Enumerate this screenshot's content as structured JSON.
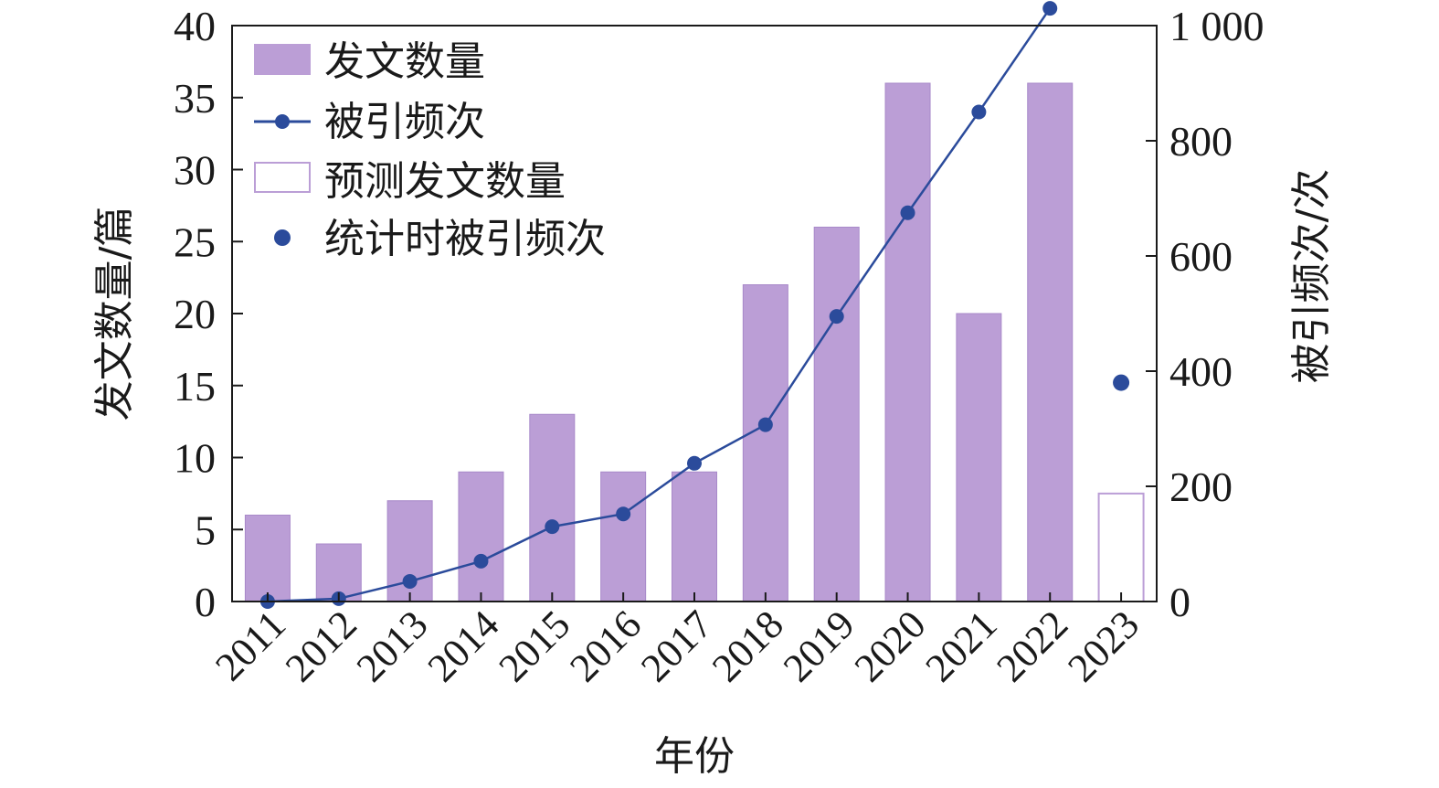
{
  "chart_data": {
    "type": "bar",
    "categories": [
      "2011",
      "2012",
      "2013",
      "2014",
      "2015",
      "2016",
      "2017",
      "2018",
      "2019",
      "2020",
      "2021",
      "2022",
      "2023"
    ],
    "xlabel": "年份",
    "ylabel": "发文数量/篇",
    "y2label": "被引频次/次",
    "ylim": [
      0,
      40
    ],
    "y2lim": [
      0,
      1000
    ],
    "yticks": [
      "0",
      "5",
      "10",
      "15",
      "20",
      "25",
      "30",
      "35",
      "40"
    ],
    "yticks_values": [
      0,
      5,
      10,
      15,
      20,
      25,
      30,
      35,
      40
    ],
    "y2ticks": [
      "0",
      "200",
      "400",
      "600",
      "800",
      "1 000"
    ],
    "y2ticks_values": [
      0,
      200,
      400,
      600,
      800,
      1000
    ],
    "series": [
      {
        "name": "发文数量",
        "type": "bar",
        "axis": "left",
        "values": [
          6,
          4,
          7,
          9,
          13,
          9,
          9,
          22,
          26,
          36,
          20,
          36,
          null
        ]
      },
      {
        "name": "被引频次",
        "type": "line",
        "axis": "right",
        "values": [
          0,
          5,
          35,
          70,
          130,
          152,
          240,
          307,
          495,
          675,
          850,
          1030,
          null
        ]
      },
      {
        "name": "预测发文数量",
        "type": "bar-outline",
        "axis": "left",
        "values": [
          null,
          null,
          null,
          null,
          null,
          null,
          null,
          null,
          null,
          null,
          null,
          null,
          7.5
        ]
      },
      {
        "name": "统计时被引频次",
        "type": "point",
        "axis": "right",
        "values": [
          null,
          null,
          null,
          null,
          null,
          null,
          null,
          null,
          null,
          null,
          null,
          null,
          380
        ]
      }
    ],
    "legend": {
      "position": "top-left"
    },
    "colors": {
      "bar": "#bb9ed6",
      "bar_edge": "#a889c9",
      "line": "#2b4b9b",
      "axis": "#1a1a1a"
    },
    "grid": false
  }
}
